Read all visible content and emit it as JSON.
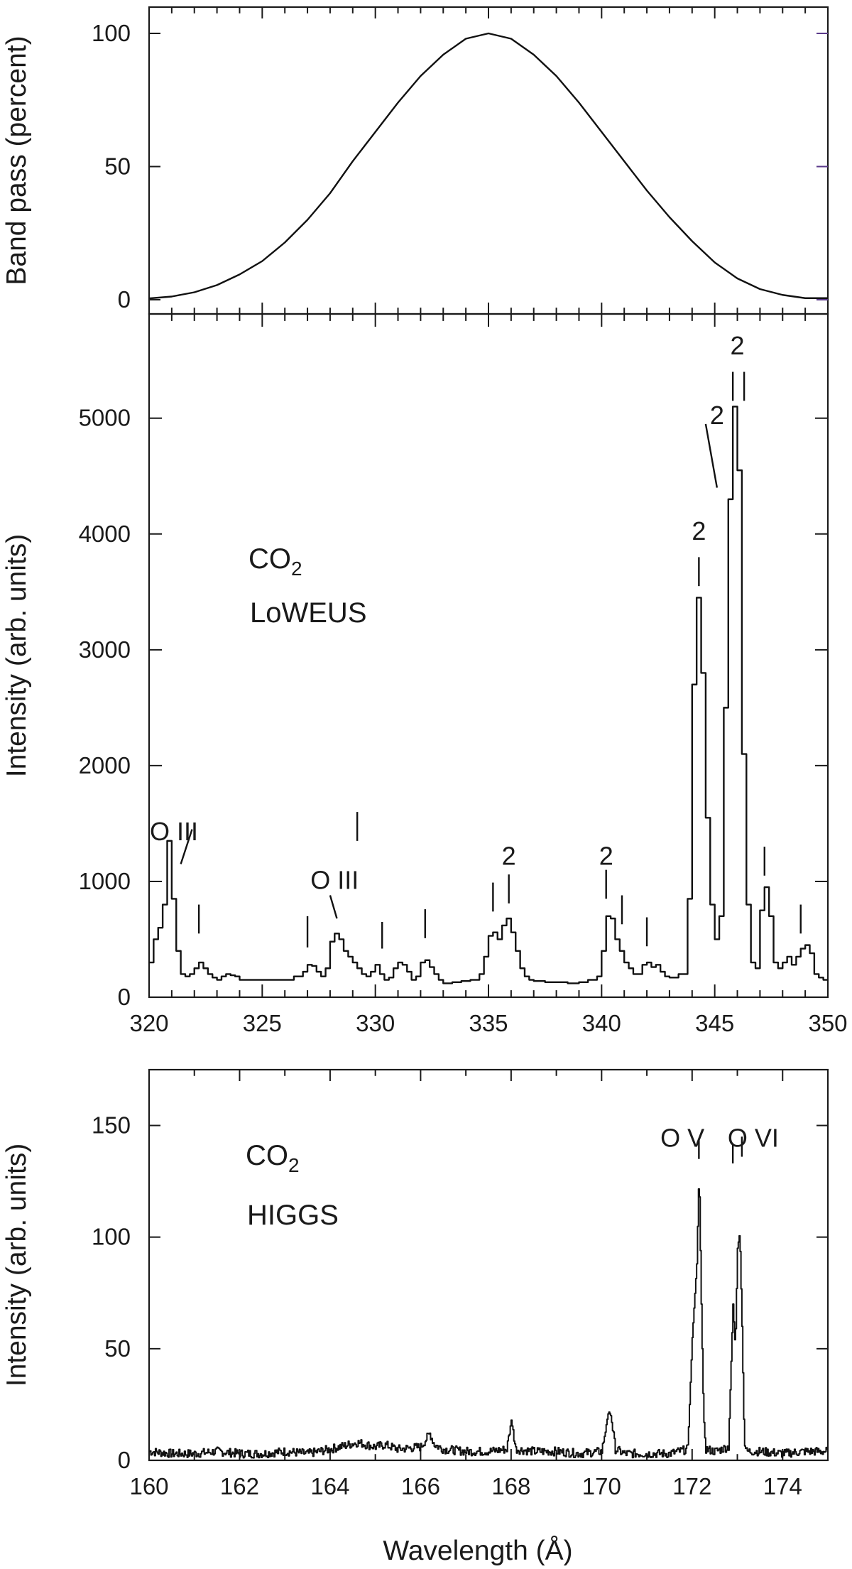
{
  "chart_data": [
    {
      "type": "line",
      "ylabel": "Band pass (percent)",
      "xlabel": "",
      "xlim": [
        320,
        350
      ],
      "ylim": [
        0,
        100
      ],
      "yticks": [
        "0",
        "50",
        "100"
      ],
      "grid": false,
      "series": [
        {
          "x": [
            320,
            321,
            322,
            323,
            324,
            325,
            326,
            327,
            328,
            329,
            330,
            331,
            332,
            333,
            334,
            335,
            336,
            337,
            338,
            339,
            340,
            341,
            342,
            343,
            344,
            345,
            346,
            347,
            348,
            349,
            350
          ],
          "values": [
            0.5,
            1.2,
            2.8,
            5.5,
            9.5,
            14.5,
            21.5,
            30,
            40,
            52,
            63,
            74,
            84,
            92,
            98,
            100,
            98,
            92,
            84,
            74,
            63,
            52,
            41,
            31,
            22,
            14,
            8,
            4,
            1.8,
            0.6,
            0.6
          ]
        }
      ]
    },
    {
      "type": "line",
      "ylabel": "Intensity (arb. units)",
      "xlabel": "",
      "xlim": [
        320,
        350
      ],
      "ylim": [
        0,
        5900
      ],
      "xticks": [
        "320",
        "325",
        "330",
        "335",
        "340",
        "345",
        "350"
      ],
      "yticks": [
        "0",
        "1000",
        "2000",
        "3000",
        "4000",
        "5000"
      ],
      "grid": false,
      "gas_label": {
        "main": "CO",
        "subscript": "2"
      },
      "instrument_label": "LoWEUS",
      "series": [
        {
          "x": [
            320.0,
            320.2,
            320.4,
            320.6,
            320.8,
            321.0,
            321.2,
            321.4,
            321.6,
            321.8,
            322.0,
            322.2,
            322.4,
            322.6,
            322.8,
            323.0,
            323.2,
            323.4,
            323.6,
            323.8,
            324.0,
            324.5,
            325.0,
            325.5,
            326.0,
            326.4,
            326.8,
            327.0,
            327.2,
            327.4,
            327.6,
            327.8,
            328.0,
            328.2,
            328.4,
            328.6,
            328.8,
            329.0,
            329.2,
            329.4,
            329.6,
            329.8,
            330.0,
            330.2,
            330.4,
            330.6,
            330.8,
            331.0,
            331.2,
            331.4,
            331.6,
            331.8,
            332.0,
            332.2,
            332.4,
            332.6,
            332.8,
            333.0,
            333.4,
            333.8,
            334.2,
            334.6,
            334.8,
            335.0,
            335.2,
            335.4,
            335.6,
            335.8,
            336.0,
            336.2,
            336.4,
            336.6,
            336.8,
            337.0,
            337.5,
            338.0,
            338.5,
            339.0,
            339.4,
            339.8,
            340.0,
            340.2,
            340.4,
            340.6,
            340.8,
            341.0,
            341.2,
            341.4,
            341.6,
            341.8,
            342.0,
            342.2,
            342.4,
            342.6,
            342.8,
            343.0,
            343.4,
            343.8,
            344.0,
            344.2,
            344.4,
            344.6,
            344.8,
            345.0,
            345.2,
            345.4,
            345.6,
            345.8,
            346.0,
            346.2,
            346.4,
            346.6,
            346.8,
            347.0,
            347.2,
            347.4,
            347.6,
            347.8,
            348.0,
            348.2,
            348.4,
            348.6,
            348.8,
            349.0,
            349.2,
            349.4,
            349.6,
            349.8
          ],
          "values": [
            300,
            500,
            600,
            800,
            1350,
            850,
            400,
            200,
            180,
            200,
            250,
            300,
            250,
            200,
            170,
            150,
            180,
            200,
            190,
            180,
            150,
            150,
            150,
            150,
            150,
            180,
            220,
            280,
            270,
            220,
            180,
            250,
            480,
            550,
            500,
            400,
            350,
            300,
            250,
            200,
            180,
            220,
            280,
            200,
            150,
            170,
            250,
            300,
            280,
            220,
            150,
            180,
            300,
            320,
            260,
            200,
            150,
            120,
            130,
            140,
            150,
            200,
            350,
            530,
            560,
            500,
            620,
            680,
            560,
            400,
            250,
            180,
            150,
            140,
            130,
            130,
            120,
            130,
            150,
            180,
            400,
            700,
            680,
            500,
            400,
            300,
            250,
            200,
            200,
            280,
            300,
            260,
            280,
            220,
            180,
            170,
            200,
            850,
            2700,
            3450,
            2800,
            1550,
            800,
            500,
            700,
            2500,
            4300,
            5100,
            4550,
            2100,
            800,
            300,
            250,
            750,
            950,
            700,
            300,
            250,
            300,
            350,
            280,
            350,
            420,
            450,
            380,
            200,
            170,
            150
          ]
        }
      ],
      "annotations": [
        {
          "text": "O III",
          "x": 321.1,
          "y": 1355
        },
        {
          "text": "O III",
          "x": 328.2,
          "y": 935
        },
        {
          "text": "2",
          "x": 335.9,
          "y": 1145
        },
        {
          "text": "2",
          "x": 340.2,
          "y": 1145
        },
        {
          "text": "2",
          "x": 344.3,
          "y": 3950
        },
        {
          "text": "2",
          "x": 345.1,
          "y": 4950
        },
        {
          "text": "2",
          "x": 346.0,
          "y": 5550
        }
      ]
    },
    {
      "type": "line",
      "xlabel": "Wavelength (Å)",
      "ylabel": "Intensity (arb. units)",
      "xlim": [
        160,
        175
      ],
      "ylim": [
        0,
        175
      ],
      "xticks": [
        "160",
        "162",
        "164",
        "166",
        "168",
        "170",
        "172",
        "174"
      ],
      "yticks": [
        "0",
        "50",
        "100",
        "150"
      ],
      "grid": false,
      "gas_label": {
        "main": "CO",
        "subscript": "2"
      },
      "instrument_label": "HIGGS",
      "series": [
        {
          "x": [
            160.0,
            160.5,
            161.0,
            161.5,
            162.0,
            162.5,
            163.0,
            163.5,
            164.0,
            164.4,
            164.6,
            164.8,
            165.0,
            165.2,
            165.5,
            166.0,
            166.2,
            166.3,
            166.5,
            167.0,
            167.5,
            167.9,
            168.0,
            168.1,
            168.5,
            169.0,
            169.5,
            170.0,
            170.15,
            170.2,
            170.3,
            170.5,
            171.0,
            171.5,
            171.9,
            172.0,
            172.1,
            172.15,
            172.2,
            172.25,
            172.3,
            172.5,
            172.8,
            172.9,
            172.95,
            173.0,
            173.05,
            173.1,
            173.15,
            173.2,
            173.5,
            174.0,
            174.5,
            175.0
          ],
          "values": [
            4,
            3,
            3,
            4,
            3,
            3,
            4,
            3,
            5,
            7,
            8,
            7,
            6,
            7,
            5,
            6,
            12,
            7,
            5,
            4,
            4,
            5,
            18,
            5,
            4,
            4,
            3,
            4,
            22,
            20,
            5,
            3,
            3,
            3,
            5,
            55,
            88,
            130,
            70,
            20,
            5,
            4,
            6,
            70,
            50,
            95,
            102,
            60,
            8,
            4,
            4,
            3,
            4,
            4
          ]
        }
      ],
      "annotations": [
        {
          "text": "O V",
          "x": 172.1,
          "y": 145
        },
        {
          "text": "O VI",
          "x": 173.1,
          "y": 145
        }
      ]
    }
  ]
}
